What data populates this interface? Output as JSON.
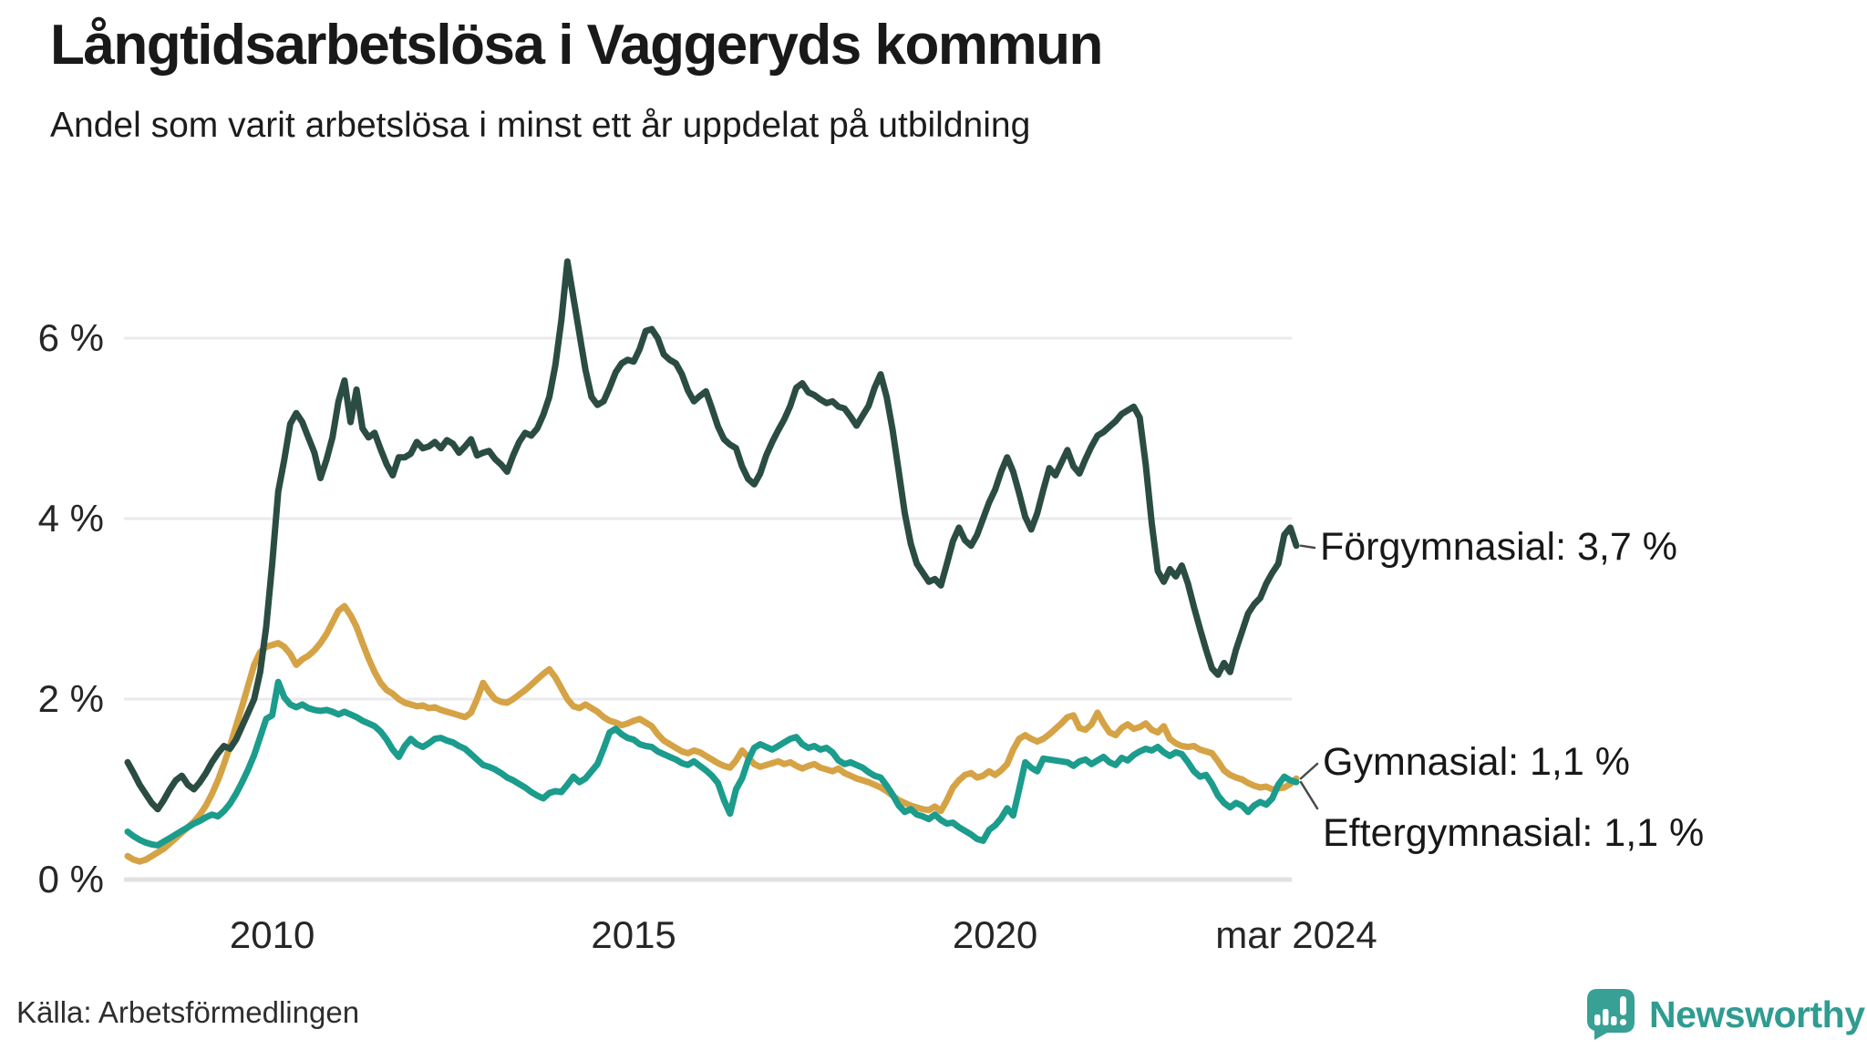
{
  "header": {
    "title": "Långtidsarbetslösa i Vaggeryds kommun",
    "subtitle": "Andel som varit arbetslösa i minst ett år uppdelat på utbildning"
  },
  "source": {
    "label": "Källa: Arbetsförmedlingen"
  },
  "brand": {
    "name": "Newsworthy"
  },
  "colors": {
    "forgymnasial": "#2b4c43",
    "gymnasial": "#d5a345",
    "eftergymnasial": "#1b9c8c",
    "gridline": "#eaeaed",
    "zeroline": "#e1e1e4",
    "connector": "#4a4a4a",
    "brand_teal": "#2f9c90"
  },
  "chart_data": {
    "type": "line",
    "x_unit": "month",
    "x_start": "2008-01",
    "x_end": "2024-03",
    "ylim": [
      0,
      7
    ],
    "grid": "horizontal",
    "legend_position": "end-of-line-labels",
    "x_tick_labels": [
      "2010",
      "2015",
      "2020",
      "mar 2024"
    ],
    "x_tick_positions": [
      24,
      84,
      144,
      194
    ],
    "y_ticks": [
      {
        "value": 0,
        "label": "0 %"
      },
      {
        "value": 2,
        "label": "2 %"
      },
      {
        "value": 4,
        "label": "4 %"
      },
      {
        "value": 6,
        "label": "6 %"
      }
    ],
    "series": [
      {
        "name": "Förgymnasial",
        "end_label": "Förgymnasial: 3,7 %",
        "end_value_display": "3,7 %",
        "color_key": "forgymnasial",
        "values": [
          1.3,
          1.18,
          1.05,
          0.95,
          0.85,
          0.78,
          0.88,
          1.0,
          1.1,
          1.15,
          1.05,
          1.0,
          1.08,
          1.18,
          1.3,
          1.4,
          1.48,
          1.45,
          1.55,
          1.7,
          1.85,
          2.0,
          2.3,
          2.8,
          3.5,
          4.3,
          4.65,
          5.05,
          5.17,
          5.07,
          4.9,
          4.73,
          4.45,
          4.65,
          4.9,
          5.3,
          5.53,
          5.07,
          5.43,
          5.0,
          4.9,
          4.95,
          4.77,
          4.6,
          4.48,
          4.68,
          4.68,
          4.72,
          4.85,
          4.78,
          4.8,
          4.85,
          4.78,
          4.87,
          4.83,
          4.73,
          4.8,
          4.88,
          4.7,
          4.73,
          4.75,
          4.66,
          4.6,
          4.52,
          4.7,
          4.85,
          4.95,
          4.92,
          5.0,
          5.15,
          5.35,
          5.7,
          6.2,
          6.85,
          6.45,
          6.05,
          5.65,
          5.35,
          5.26,
          5.3,
          5.45,
          5.62,
          5.72,
          5.76,
          5.74,
          5.88,
          6.08,
          6.1,
          6.0,
          5.82,
          5.76,
          5.72,
          5.6,
          5.42,
          5.3,
          5.36,
          5.41,
          5.22,
          5.02,
          4.88,
          4.82,
          4.78,
          4.58,
          4.44,
          4.38,
          4.5,
          4.7,
          4.85,
          4.98,
          5.1,
          5.25,
          5.45,
          5.5,
          5.4,
          5.37,
          5.32,
          5.28,
          5.3,
          5.24,
          5.22,
          5.13,
          5.03,
          5.14,
          5.25,
          5.45,
          5.6,
          5.35,
          4.98,
          4.52,
          4.06,
          3.72,
          3.5,
          3.4,
          3.3,
          3.33,
          3.26,
          3.5,
          3.75,
          3.9,
          3.76,
          3.7,
          3.82,
          4.0,
          4.18,
          4.32,
          4.52,
          4.68,
          4.52,
          4.28,
          4.02,
          3.88,
          4.06,
          4.32,
          4.56,
          4.48,
          4.62,
          4.76,
          4.58,
          4.5,
          4.66,
          4.8,
          4.92,
          4.96,
          5.02,
          5.08,
          5.16,
          5.2,
          5.24,
          5.12,
          4.6,
          3.95,
          3.42,
          3.3,
          3.44,
          3.36,
          3.48,
          3.28,
          3.02,
          2.78,
          2.55,
          2.34,
          2.27,
          2.4,
          2.3,
          2.55,
          2.75,
          2.95,
          3.05,
          3.12,
          3.28,
          3.4,
          3.5,
          3.82,
          3.9,
          3.7
        ]
      },
      {
        "name": "Gymnasial",
        "end_label": "Gymnasial: 1,1 %",
        "end_value_display": "1,1 %",
        "color_key": "gymnasial",
        "values": [
          0.26,
          0.22,
          0.2,
          0.22,
          0.26,
          0.3,
          0.34,
          0.4,
          0.46,
          0.52,
          0.58,
          0.64,
          0.72,
          0.82,
          0.95,
          1.1,
          1.28,
          1.48,
          1.7,
          1.92,
          2.15,
          2.38,
          2.52,
          2.58,
          2.6,
          2.62,
          2.58,
          2.5,
          2.38,
          2.44,
          2.48,
          2.54,
          2.62,
          2.72,
          2.85,
          2.98,
          3.03,
          2.93,
          2.8,
          2.62,
          2.45,
          2.3,
          2.18,
          2.1,
          2.06,
          2.0,
          1.96,
          1.94,
          1.92,
          1.93,
          1.9,
          1.91,
          1.88,
          1.86,
          1.84,
          1.82,
          1.8,
          1.85,
          2.0,
          2.18,
          2.08,
          2.0,
          1.97,
          1.96,
          2.0,
          2.05,
          2.1,
          2.16,
          2.22,
          2.28,
          2.33,
          2.24,
          2.12,
          2.0,
          1.92,
          1.9,
          1.94,
          1.9,
          1.86,
          1.8,
          1.76,
          1.74,
          1.71,
          1.73,
          1.76,
          1.78,
          1.74,
          1.7,
          1.61,
          1.54,
          1.5,
          1.46,
          1.42,
          1.4,
          1.43,
          1.41,
          1.37,
          1.33,
          1.29,
          1.26,
          1.24,
          1.32,
          1.43,
          1.36,
          1.28,
          1.25,
          1.27,
          1.29,
          1.31,
          1.28,
          1.3,
          1.26,
          1.23,
          1.26,
          1.28,
          1.24,
          1.22,
          1.2,
          1.23,
          1.18,
          1.15,
          1.12,
          1.1,
          1.08,
          1.05,
          1.02,
          0.98,
          0.93,
          0.88,
          0.85,
          0.82,
          0.8,
          0.78,
          0.77,
          0.81,
          0.76,
          0.88,
          1.02,
          1.1,
          1.16,
          1.18,
          1.13,
          1.15,
          1.2,
          1.16,
          1.21,
          1.28,
          1.44,
          1.56,
          1.6,
          1.56,
          1.53,
          1.56,
          1.61,
          1.67,
          1.73,
          1.8,
          1.82,
          1.68,
          1.66,
          1.72,
          1.85,
          1.73,
          1.63,
          1.6,
          1.68,
          1.72,
          1.67,
          1.69,
          1.73,
          1.66,
          1.63,
          1.7,
          1.56,
          1.51,
          1.48,
          1.47,
          1.48,
          1.44,
          1.42,
          1.4,
          1.31,
          1.21,
          1.16,
          1.13,
          1.11,
          1.07,
          1.04,
          1.02,
          1.03,
          1.0,
          1.01,
          1.02,
          1.06,
          1.12
        ]
      },
      {
        "name": "Eftergymnasial",
        "end_label": "Eftergymnasial: 1,1 %",
        "end_value_display": "1,1 %",
        "color_key": "eftergymnasial",
        "values": [
          0.53,
          0.48,
          0.44,
          0.41,
          0.39,
          0.38,
          0.42,
          0.46,
          0.5,
          0.54,
          0.58,
          0.62,
          0.65,
          0.69,
          0.72,
          0.7,
          0.76,
          0.84,
          0.95,
          1.08,
          1.22,
          1.38,
          1.58,
          1.78,
          1.82,
          2.19,
          2.02,
          1.94,
          1.91,
          1.94,
          1.9,
          1.88,
          1.87,
          1.88,
          1.86,
          1.83,
          1.86,
          1.83,
          1.8,
          1.76,
          1.73,
          1.7,
          1.64,
          1.55,
          1.44,
          1.36,
          1.48,
          1.56,
          1.5,
          1.47,
          1.51,
          1.56,
          1.57,
          1.54,
          1.52,
          1.48,
          1.45,
          1.39,
          1.33,
          1.27,
          1.25,
          1.22,
          1.18,
          1.13,
          1.1,
          1.06,
          1.02,
          0.97,
          0.93,
          0.9,
          0.96,
          0.98,
          0.97,
          1.05,
          1.14,
          1.08,
          1.12,
          1.2,
          1.28,
          1.45,
          1.63,
          1.67,
          1.61,
          1.57,
          1.55,
          1.5,
          1.48,
          1.47,
          1.42,
          1.39,
          1.36,
          1.33,
          1.29,
          1.27,
          1.31,
          1.26,
          1.21,
          1.15,
          1.07,
          0.88,
          0.73,
          1.0,
          1.12,
          1.32,
          1.46,
          1.5,
          1.47,
          1.44,
          1.48,
          1.52,
          1.56,
          1.58,
          1.5,
          1.46,
          1.48,
          1.44,
          1.46,
          1.41,
          1.32,
          1.28,
          1.3,
          1.27,
          1.24,
          1.19,
          1.15,
          1.13,
          1.04,
          0.94,
          0.82,
          0.75,
          0.78,
          0.72,
          0.7,
          0.67,
          0.72,
          0.66,
          0.62,
          0.63,
          0.58,
          0.54,
          0.5,
          0.45,
          0.43,
          0.55,
          0.6,
          0.68,
          0.79,
          0.71,
          1.0,
          1.3,
          1.24,
          1.2,
          1.34,
          1.33,
          1.32,
          1.31,
          1.3,
          1.26,
          1.31,
          1.33,
          1.28,
          1.32,
          1.36,
          1.3,
          1.27,
          1.35,
          1.32,
          1.38,
          1.42,
          1.45,
          1.43,
          1.47,
          1.41,
          1.37,
          1.41,
          1.39,
          1.3,
          1.2,
          1.14,
          1.16,
          1.06,
          0.93,
          0.85,
          0.8,
          0.85,
          0.82,
          0.75,
          0.82,
          0.86,
          0.83,
          0.9,
          1.05,
          1.14,
          1.1,
          1.08
        ]
      }
    ]
  }
}
